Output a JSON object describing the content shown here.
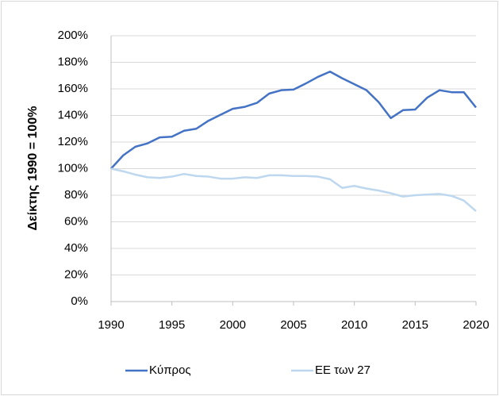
{
  "chart_data": {
    "type": "line",
    "ylabel": "Δείκτης 1990 = 100%",
    "x": [
      1990,
      1991,
      1992,
      1993,
      1994,
      1995,
      1996,
      1997,
      1998,
      1999,
      2000,
      2001,
      2002,
      2003,
      2004,
      2005,
      2006,
      2007,
      2008,
      2009,
      2010,
      2011,
      2012,
      2013,
      2014,
      2015,
      2016,
      2017,
      2018,
      2019,
      2020
    ],
    "series": [
      {
        "name": "Κύπρος",
        "color": "#4472c4",
        "values": [
          100,
          110,
          116.5,
          119,
          123.5,
          124,
          128.5,
          130,
          136,
          140.5,
          145,
          146.5,
          149.5,
          156.5,
          159,
          159.5,
          164,
          169,
          173,
          168,
          163.5,
          159,
          150,
          138,
          144,
          144.5,
          153.5,
          159,
          157.5,
          157.5,
          146
        ]
      },
      {
        "name": "ΕΕ των 27",
        "color": "#bdd7ee",
        "values": [
          100,
          98,
          95.5,
          93.5,
          93,
          94,
          96,
          94.5,
          94,
          92.5,
          92.5,
          93.5,
          93,
          95,
          95,
          94.5,
          94.5,
          94,
          92,
          85.5,
          87,
          85,
          83.5,
          81.5,
          79,
          80,
          80.5,
          81,
          79.5,
          76,
          68
        ]
      }
    ],
    "xlim": [
      1990,
      2020
    ],
    "xticks": [
      1990,
      1995,
      2000,
      2005,
      2010,
      2015,
      2020
    ],
    "ylim": [
      0,
      200
    ],
    "yticks": [
      {
        "value": 0,
        "label": "0%"
      },
      {
        "value": 20,
        "label": "20%"
      },
      {
        "value": 40,
        "label": "40%"
      },
      {
        "value": 60,
        "label": "60%"
      },
      {
        "value": 80,
        "label": "80%"
      },
      {
        "value": 100,
        "label": "100%"
      },
      {
        "value": 120,
        "label": "120%"
      },
      {
        "value": 140,
        "label": "140%"
      },
      {
        "value": 160,
        "label": "160%"
      },
      {
        "value": 180,
        "label": "180%"
      },
      {
        "value": 200,
        "label": "200%"
      }
    ],
    "grid": true,
    "legend": "bottom"
  }
}
